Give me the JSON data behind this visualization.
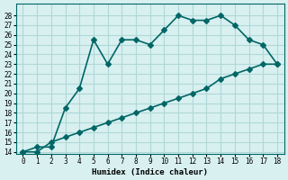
{
  "xlabel": "Humidex (Indice chaleur)",
  "ylabel": "",
  "bg_color": "#d8f0f0",
  "line_color": "#006666",
  "grid_color": "#b0d8d8",
  "upper_x": [
    0,
    1,
    2,
    3,
    4,
    5,
    6,
    7,
    8,
    9,
    10,
    11,
    12,
    13,
    14,
    15,
    16,
    17,
    18
  ],
  "upper_y": [
    14,
    14.5,
    14.5,
    18.5,
    20.5,
    25.5,
    23,
    25.5,
    25.5,
    25,
    26.5,
    28,
    27.5,
    27.5,
    28,
    27,
    25.5,
    25,
    23
  ],
  "lower_x": [
    0,
    1,
    2,
    3,
    4,
    5,
    6,
    7,
    8,
    9,
    10,
    11,
    12,
    13,
    14,
    15,
    16,
    17,
    18
  ],
  "lower_y": [
    14,
    14,
    15,
    15.5,
    16,
    16.5,
    17,
    17.5,
    18,
    18.5,
    19,
    19.5,
    20,
    20.5,
    21.5,
    22,
    22.5,
    23,
    23
  ],
  "xlim": [
    -0.5,
    18.5
  ],
  "ylim": [
    14,
    29
  ],
  "yticks": [
    14,
    15,
    16,
    17,
    18,
    19,
    20,
    21,
    22,
    23,
    24,
    25,
    26,
    27,
    28
  ],
  "xticks": [
    0,
    1,
    2,
    3,
    4,
    5,
    6,
    7,
    8,
    9,
    10,
    11,
    12,
    13,
    14,
    15,
    16,
    17,
    18
  ]
}
